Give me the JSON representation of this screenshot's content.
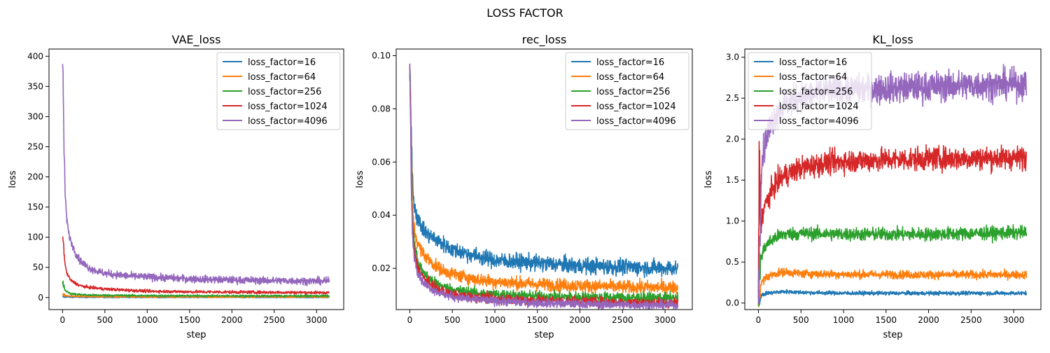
{
  "suptitle": "LOSS FACTOR",
  "legend_labels": [
    "loss_factor=16",
    "loss_factor=64",
    "loss_factor=256",
    "loss_factor=1024",
    "loss_factor=4096"
  ],
  "colors": [
    "#1f77b4",
    "#ff7f0e",
    "#2ca02c",
    "#d62728",
    "#9467bd"
  ],
  "chart_data": [
    {
      "type": "line",
      "title": "VAE_loss",
      "xlabel": "step",
      "ylabel": "loss",
      "xlim": [
        -160,
        3320
      ],
      "ylim": [
        -20,
        412
      ],
      "xticks": [
        0,
        500,
        1000,
        1500,
        2000,
        2500,
        3000
      ],
      "yticks": [
        0,
        50,
        100,
        150,
        200,
        250,
        300,
        350,
        400
      ],
      "ytick_labels": [
        "0",
        "50",
        "100",
        "150",
        "200",
        "250",
        "300",
        "350",
        "400"
      ],
      "legend_loc": "upper right",
      "noise": [
        0.4,
        0.6,
        0.8,
        1.2,
        3
      ],
      "series": [
        {
          "name": "loss_factor=16",
          "x": [
            0,
            10,
            30,
            100,
            300,
            1000,
            2000,
            3150
          ],
          "y": [
            1.5,
            1.3,
            1.0,
            0.7,
            0.5,
            0.35,
            0.33,
            0.32
          ]
        },
        {
          "name": "loss_factor=64",
          "x": [
            0,
            10,
            30,
            100,
            300,
            1000,
            2000,
            3150
          ],
          "y": [
            6,
            5,
            3.5,
            2.3,
            1.6,
            1.1,
            1.0,
            0.95
          ]
        },
        {
          "name": "loss_factor=256",
          "x": [
            0,
            10,
            30,
            100,
            300,
            1000,
            2000,
            3150
          ],
          "y": [
            25,
            22,
            12,
            6,
            4,
            3,
            2.7,
            2.6
          ]
        },
        {
          "name": "loss_factor=1024",
          "x": [
            0,
            10,
            30,
            50,
            100,
            200,
            300,
            500,
            1000,
            1500,
            2000,
            3150
          ],
          "y": [
            100,
            90,
            55,
            40,
            28,
            20,
            17,
            14,
            10.5,
            9.5,
            9,
            8
          ]
        },
        {
          "name": "loss_factor=4096",
          "x": [
            0,
            5,
            10,
            20,
            30,
            50,
            75,
            100,
            150,
            200,
            300,
            400,
            500,
            750,
            1000,
            1500,
            2000,
            2500,
            3150
          ],
          "y": [
            392,
            380,
            320,
            230,
            175,
            130,
            105,
            92,
            75,
            62,
            50,
            44,
            40,
            36,
            34,
            31,
            29,
            28,
            27
          ]
        }
      ]
    },
    {
      "type": "line",
      "title": "rec_loss",
      "xlabel": "step",
      "ylabel": "loss",
      "xlim": [
        -160,
        3320
      ],
      "ylim": [
        0.0045,
        0.1025
      ],
      "xticks": [
        0,
        500,
        1000,
        1500,
        2000,
        2500,
        3000
      ],
      "yticks": [
        0.02,
        0.04,
        0.06,
        0.08,
        0.1
      ],
      "ytick_labels": [
        "0.02",
        "0.04",
        "0.06",
        "0.08",
        "0.10"
      ],
      "legend_loc": "upper right",
      "noise": [
        0.0015,
        0.0012,
        0.001,
        0.0009,
        0.0008
      ],
      "series": [
        {
          "name": "loss_factor=16",
          "x": [
            0,
            10,
            20,
            30,
            50,
            80,
            100,
            150,
            200,
            300,
            400,
            500,
            750,
            1000,
            1500,
            2000,
            2500,
            3150
          ],
          "y": [
            0.091,
            0.083,
            0.07,
            0.055,
            0.044,
            0.04,
            0.038,
            0.035,
            0.033,
            0.031,
            0.029,
            0.027,
            0.025,
            0.023,
            0.022,
            0.021,
            0.0205,
            0.02
          ]
        },
        {
          "name": "loss_factor=64",
          "x": [
            0,
            10,
            20,
            30,
            50,
            80,
            100,
            150,
            200,
            300,
            400,
            500,
            750,
            1000,
            1500,
            2000,
            2500,
            3150
          ],
          "y": [
            0.094,
            0.08,
            0.06,
            0.045,
            0.035,
            0.031,
            0.029,
            0.026,
            0.024,
            0.021,
            0.019,
            0.018,
            0.016,
            0.015,
            0.014,
            0.0135,
            0.013,
            0.0128
          ]
        },
        {
          "name": "loss_factor=256",
          "x": [
            0,
            10,
            20,
            30,
            50,
            80,
            100,
            150,
            200,
            300,
            400,
            500,
            750,
            1000,
            1500,
            2000,
            2500,
            3150
          ],
          "y": [
            0.096,
            0.078,
            0.055,
            0.04,
            0.03,
            0.025,
            0.022,
            0.019,
            0.017,
            0.0145,
            0.013,
            0.012,
            0.0108,
            0.0102,
            0.0095,
            0.0092,
            0.009,
            0.0088
          ]
        },
        {
          "name": "loss_factor=1024",
          "x": [
            0,
            10,
            20,
            30,
            50,
            80,
            100,
            150,
            200,
            300,
            400,
            500,
            750,
            1000,
            1500,
            2000,
            2500,
            3150
          ],
          "y": [
            0.098,
            0.075,
            0.05,
            0.036,
            0.027,
            0.022,
            0.02,
            0.017,
            0.015,
            0.0125,
            0.0112,
            0.0102,
            0.0092,
            0.0087,
            0.008,
            0.0075,
            0.0072,
            0.007
          ]
        },
        {
          "name": "loss_factor=4096",
          "x": [
            0,
            10,
            20,
            30,
            50,
            80,
            100,
            150,
            200,
            300,
            400,
            500,
            750,
            1000,
            1500,
            2000,
            2500,
            3150
          ],
          "y": [
            0.097,
            0.072,
            0.048,
            0.033,
            0.025,
            0.02,
            0.018,
            0.015,
            0.0135,
            0.0115,
            0.0102,
            0.0093,
            0.0083,
            0.0077,
            0.007,
            0.0066,
            0.0063,
            0.0061
          ]
        }
      ]
    },
    {
      "type": "line",
      "title": "KL_loss",
      "xlabel": "step",
      "ylabel": "loss",
      "xlim": [
        -160,
        3320
      ],
      "ylim": [
        -0.08,
        3.1
      ],
      "xticks": [
        0,
        500,
        1000,
        1500,
        2000,
        2500,
        3000
      ],
      "yticks": [
        0,
        0.5,
        1.0,
        1.5,
        2.0,
        2.5,
        3.0
      ],
      "ytick_labels": [
        "0.0",
        "0.5",
        "1.0",
        "1.5",
        "2.0",
        "2.5",
        "3.0"
      ],
      "legend_loc": "upper left",
      "noise": [
        0.012,
        0.025,
        0.04,
        0.07,
        0.09
      ],
      "series": [
        {
          "name": "loss_factor=16",
          "x": [
            0,
            20,
            50,
            100,
            200,
            300,
            500,
            1000,
            2000,
            3150
          ],
          "y": [
            0,
            0.07,
            0.1,
            0.12,
            0.13,
            0.14,
            0.13,
            0.12,
            0.12,
            0.12
          ]
        },
        {
          "name": "loss_factor=64",
          "x": [
            0,
            20,
            50,
            100,
            200,
            300,
            400,
            500,
            1000,
            2000,
            3150
          ],
          "y": [
            0,
            0.2,
            0.27,
            0.32,
            0.36,
            0.38,
            0.37,
            0.36,
            0.35,
            0.345,
            0.345
          ]
        },
        {
          "name": "loss_factor=256",
          "x": [
            0,
            20,
            50,
            100,
            200,
            300,
            500,
            1000,
            2000,
            3150
          ],
          "y": [
            0,
            0.5,
            0.62,
            0.72,
            0.8,
            0.84,
            0.85,
            0.84,
            0.84,
            0.86
          ]
        },
        {
          "name": "loss_factor=1024",
          "x": [
            0,
            10,
            20,
            30,
            50,
            100,
            200,
            300,
            500,
            750,
            1000,
            1500,
            2000,
            2500,
            3150
          ],
          "y": [
            0,
            2.0,
            1.3,
            1.0,
            1.1,
            1.25,
            1.45,
            1.55,
            1.65,
            1.7,
            1.73,
            1.75,
            1.76,
            1.77,
            1.77
          ]
        },
        {
          "name": "loss_factor=4096",
          "x": [
            0,
            10,
            20,
            30,
            50,
            100,
            200,
            300,
            500,
            750,
            1000,
            1500,
            2000,
            2500,
            3150
          ],
          "y": [
            0,
            0.6,
            1.2,
            1.5,
            1.8,
            2.05,
            2.3,
            2.42,
            2.52,
            2.57,
            2.6,
            2.62,
            2.64,
            2.66,
            2.67
          ]
        }
      ]
    }
  ]
}
